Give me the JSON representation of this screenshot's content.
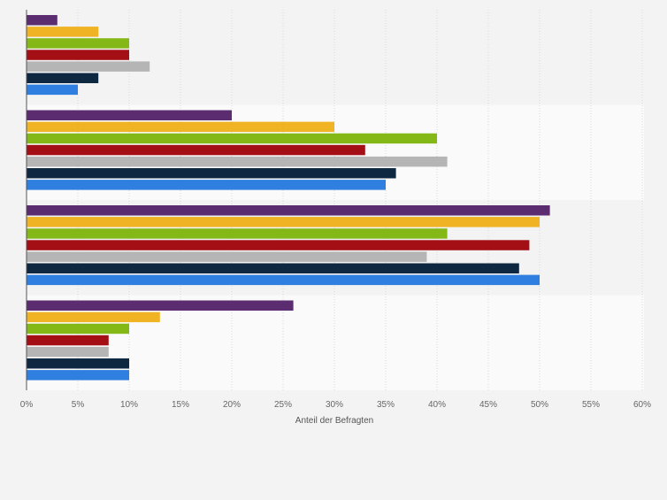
{
  "chart_data": {
    "type": "bar",
    "orientation": "horizontal",
    "title": "",
    "xlabel": "Anteil der Befragten",
    "ylabel": "",
    "xlim": [
      0,
      60
    ],
    "x_ticks": [
      0,
      5,
      10,
      15,
      20,
      25,
      30,
      35,
      40,
      45,
      50,
      55,
      60
    ],
    "tick_suffix": "%",
    "grid": true,
    "legend": "none",
    "categories": [
      "",
      "",
      "",
      ""
    ],
    "series": [
      {
        "color": "#5b2c6f",
        "values": [
          3,
          20,
          51,
          26
        ]
      },
      {
        "color": "#f0b323",
        "values": [
          7,
          30,
          50,
          13
        ]
      },
      {
        "color": "#84b817",
        "values": [
          10,
          40,
          41,
          10
        ]
      },
      {
        "color": "#a30f14",
        "values": [
          10,
          33,
          49,
          8
        ]
      },
      {
        "color": "#b5b5b5",
        "values": [
          12,
          41,
          39,
          8
        ]
      },
      {
        "color": "#0e2841",
        "values": [
          7,
          36,
          48,
          10
        ]
      },
      {
        "color": "#2f7fe0",
        "values": [
          5,
          35,
          50,
          10
        ]
      }
    ]
  }
}
